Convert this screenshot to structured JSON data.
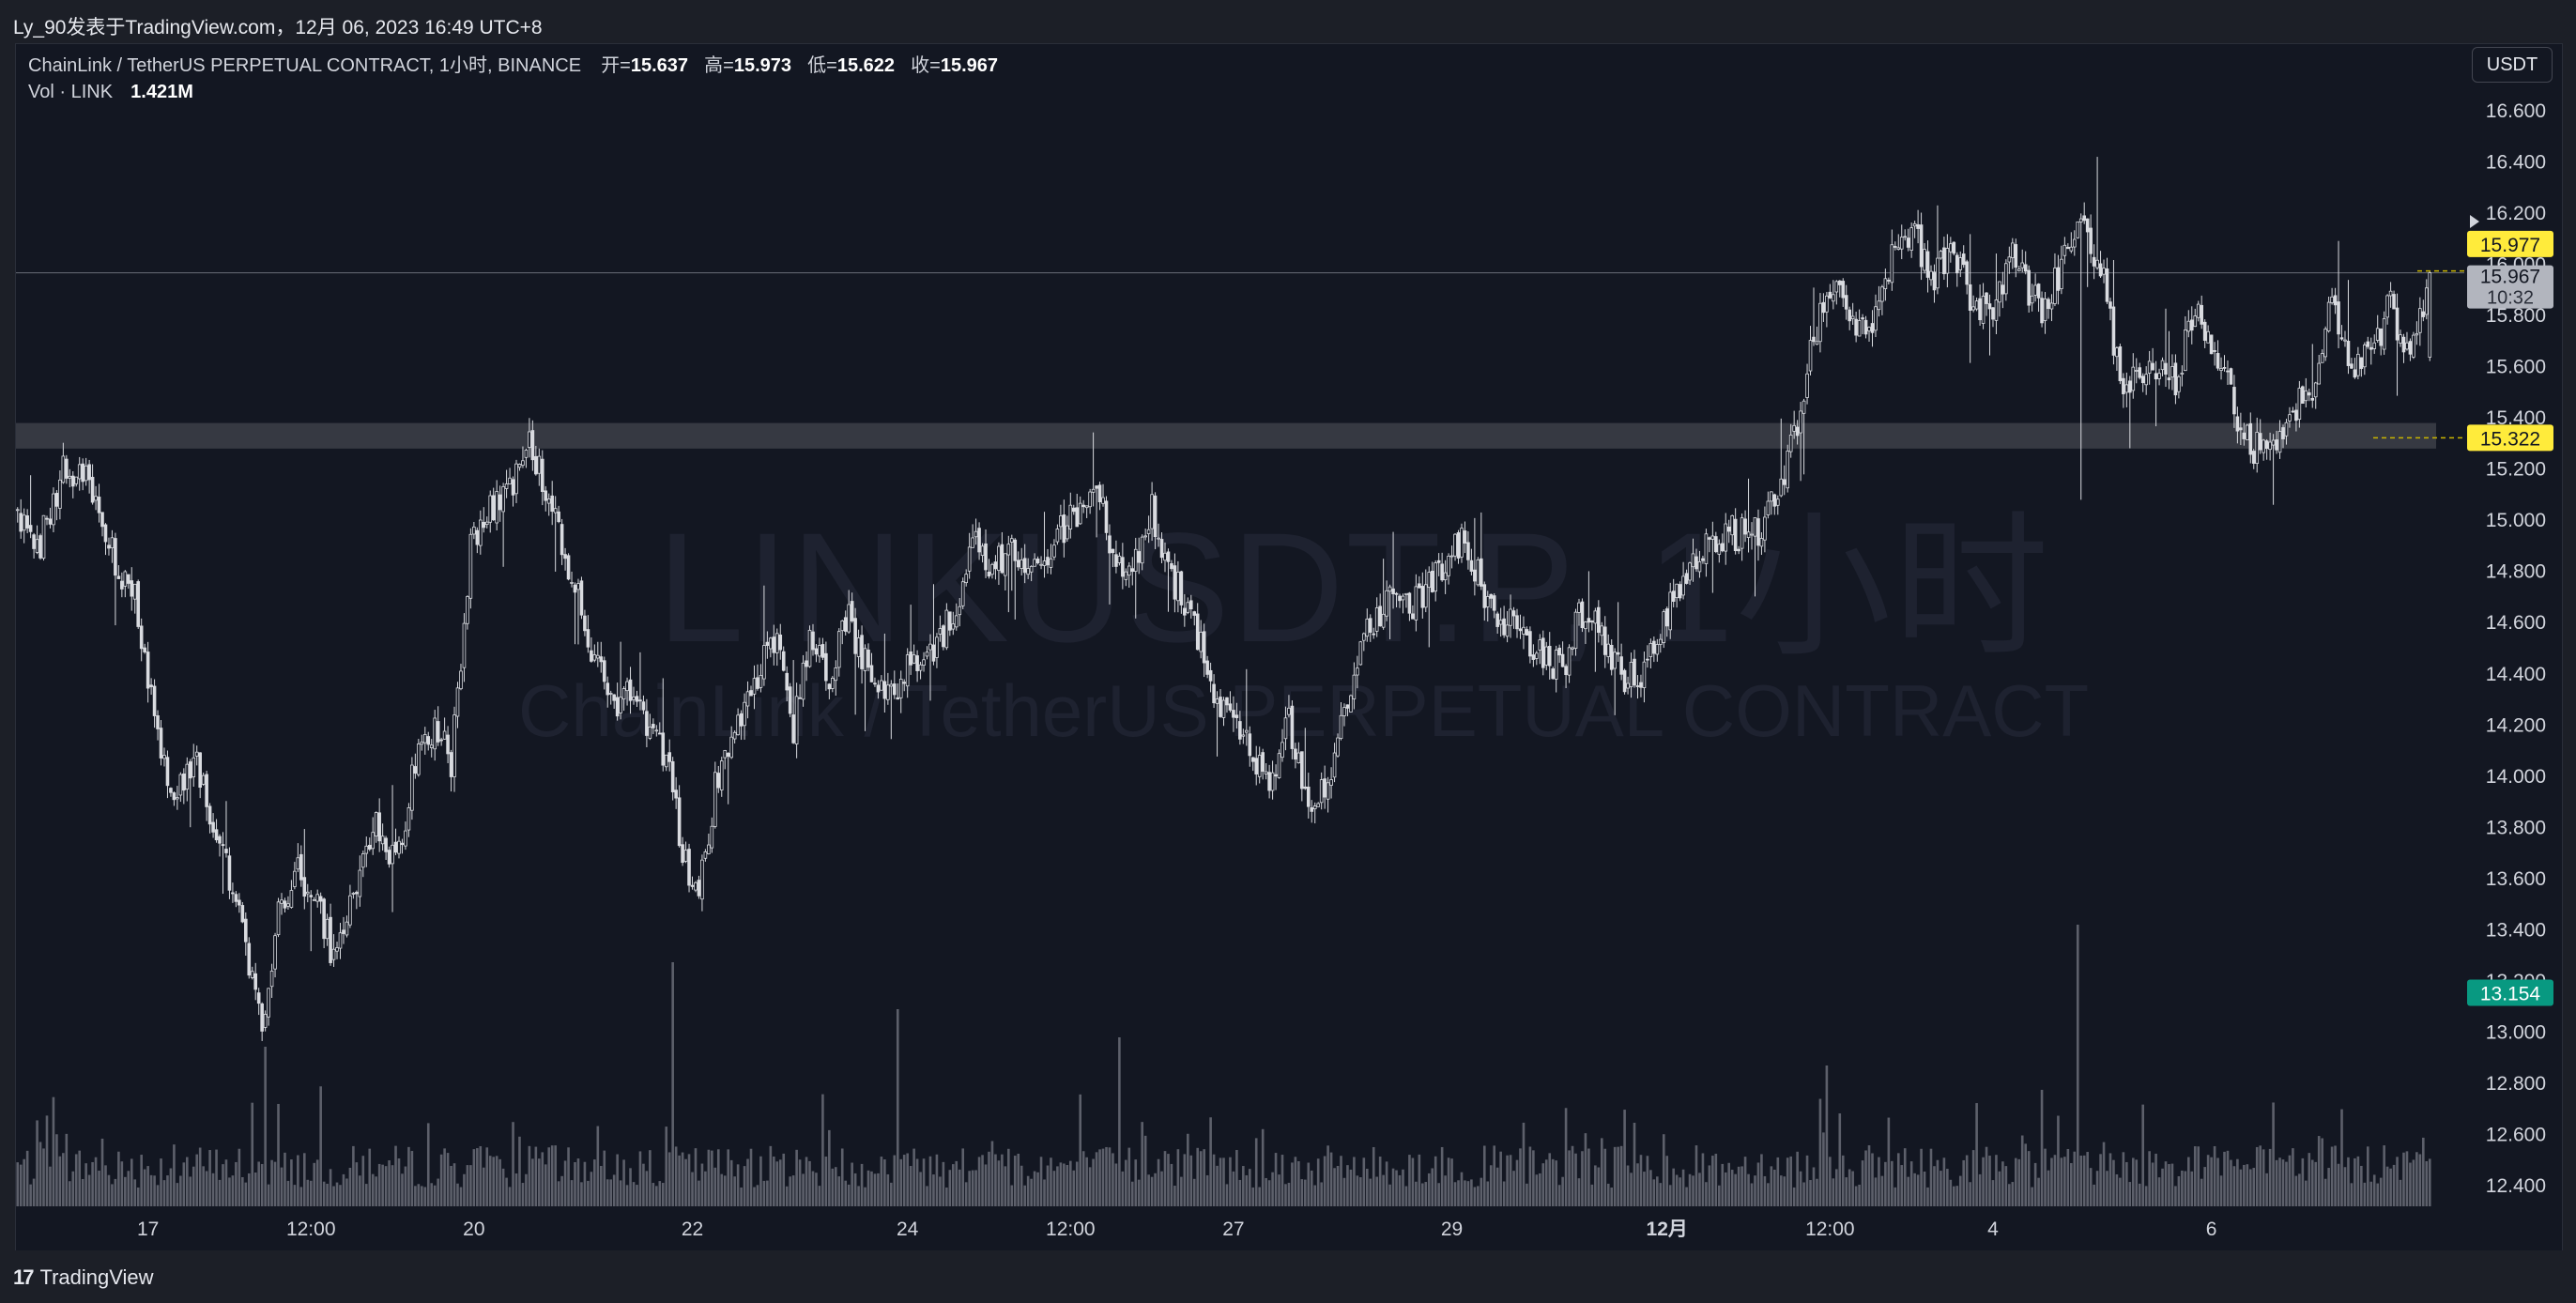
{
  "header": {
    "source_line": "Ly_90发表于TradingView.com，12月 06, 2023 16:49 UTC+8"
  },
  "legend": {
    "symbol": "ChainLink / TetherUS PERPETUAL CONTRACT, 1小时, BINANCE",
    "open_label": "开=",
    "open_value": "15.637",
    "high_label": "高=",
    "high_value": "15.973",
    "low_label": "低=",
    "low_value": "15.622",
    "close_label": "收=",
    "close_value": "15.967",
    "volume_label": "Vol · LINK",
    "volume_value": "1.421M"
  },
  "currency_button": "USDT",
  "watermark": {
    "ticker": "LINKUSDT.P, 1小时",
    "name": "ChainLink / TetherUS PERPETUAL CONTRACT"
  },
  "footer": {
    "brand": "TradingView",
    "brand_mark": "17"
  },
  "colors": {
    "background": "#131722",
    "candle": "#d9dbe0",
    "volume": "#5d606b",
    "zone": "#3d4048",
    "label_yellow": "#ffeb3b",
    "label_green": "#089981",
    "label_gray": "#b2b5be"
  },
  "chart_data": {
    "type": "candlestick",
    "interval": "1小时",
    "y_axis": {
      "range": [
        12.3,
        16.7
      ],
      "ticks": [
        "16.600",
        "16.400",
        "16.200",
        "16.000",
        "15.800",
        "15.600",
        "15.400",
        "15.200",
        "15.000",
        "14.800",
        "14.600",
        "14.400",
        "14.200",
        "14.000",
        "13.800",
        "13.600",
        "13.400",
        "13.200",
        "13.000",
        "12.800",
        "12.600",
        "12.400"
      ]
    },
    "x_axis": {
      "ticks": [
        "17",
        "12:00",
        "20",
        "22",
        "24",
        "12:00",
        "27",
        "29",
        "12月",
        "12:00",
        "4",
        "6"
      ],
      "tick_index": [
        40,
        90,
        140,
        207,
        273,
        323,
        373,
        440,
        506,
        556,
        606,
        673
      ],
      "bold_tick": "12月"
    },
    "close_path": [
      [
        0,
        15.05
      ],
      [
        6,
        14.88
      ],
      [
        14,
        15.2
      ],
      [
        22,
        15.15
      ],
      [
        30,
        14.85
      ],
      [
        36,
        14.7
      ],
      [
        42,
        14.2
      ],
      [
        48,
        13.95
      ],
      [
        55,
        14.05
      ],
      [
        62,
        13.75
      ],
      [
        70,
        13.35
      ],
      [
        75,
        13.02
      ],
      [
        80,
        13.45
      ],
      [
        86,
        13.65
      ],
      [
        92,
        13.48
      ],
      [
        97,
        13.3
      ],
      [
        104,
        13.55
      ],
      [
        110,
        13.8
      ],
      [
        116,
        13.65
      ],
      [
        122,
        14.05
      ],
      [
        128,
        14.2
      ],
      [
        133,
        14.05
      ],
      [
        139,
        14.9
      ],
      [
        146,
        15.05
      ],
      [
        152,
        15.15
      ],
      [
        157,
        15.35
      ],
      [
        163,
        15.05
      ],
      [
        170,
        14.8
      ],
      [
        176,
        14.5
      ],
      [
        182,
        14.3
      ],
      [
        188,
        14.3
      ],
      [
        194,
        14.15
      ],
      [
        200,
        14.05
      ],
      [
        204,
        13.68
      ],
      [
        209,
        13.55
      ],
      [
        214,
        13.95
      ],
      [
        220,
        14.2
      ],
      [
        226,
        14.38
      ],
      [
        232,
        14.55
      ],
      [
        238,
        14.2
      ],
      [
        243,
        14.55
      ],
      [
        249,
        14.38
      ],
      [
        255,
        14.62
      ],
      [
        261,
        14.4
      ],
      [
        268,
        14.3
      ],
      [
        275,
        14.45
      ],
      [
        281,
        14.5
      ],
      [
        287,
        14.65
      ],
      [
        294,
        14.9
      ],
      [
        300,
        14.82
      ],
      [
        306,
        14.9
      ],
      [
        312,
        14.8
      ],
      [
        318,
        14.92
      ],
      [
        324,
        15.02
      ],
      [
        330,
        15.15
      ],
      [
        336,
        14.9
      ],
      [
        342,
        14.78
      ],
      [
        348,
        15.05
      ],
      [
        354,
        14.78
      ],
      [
        360,
        14.65
      ],
      [
        366,
        14.38
      ],
      [
        372,
        14.2
      ],
      [
        378,
        14.1
      ],
      [
        384,
        14.0
      ],
      [
        390,
        14.2
      ],
      [
        396,
        13.9
      ],
      [
        402,
        14.0
      ],
      [
        408,
        14.3
      ],
      [
        414,
        14.55
      ],
      [
        420,
        14.7
      ],
      [
        426,
        14.65
      ],
      [
        432,
        14.72
      ],
      [
        438,
        14.85
      ],
      [
        444,
        14.95
      ],
      [
        450,
        14.7
      ],
      [
        456,
        14.6
      ],
      [
        462,
        14.55
      ],
      [
        468,
        14.45
      ],
      [
        474,
        14.42
      ],
      [
        480,
        14.65
      ],
      [
        486,
        14.55
      ],
      [
        492,
        14.4
      ],
      [
        498,
        14.38
      ],
      [
        504,
        14.55
      ],
      [
        510,
        14.75
      ],
      [
        516,
        14.9
      ],
      [
        522,
        14.95
      ],
      [
        528,
        14.95
      ],
      [
        534,
        14.95
      ],
      [
        540,
        15.1
      ],
      [
        546,
        15.4
      ],
      [
        552,
        15.75
      ],
      [
        558,
        15.95
      ],
      [
        564,
        15.75
      ],
      [
        570,
        15.8
      ],
      [
        576,
        16.1
      ],
      [
        582,
        16.1
      ],
      [
        588,
        15.95
      ],
      [
        594,
        16.05
      ],
      [
        600,
        15.85
      ],
      [
        606,
        15.85
      ],
      [
        612,
        16.05
      ],
      [
        617,
        15.9
      ],
      [
        622,
        15.8
      ],
      [
        628,
        16.05
      ],
      [
        634,
        16.15
      ],
      [
        640,
        15.95
      ],
      [
        645,
        15.55
      ],
      [
        650,
        15.55
      ],
      [
        656,
        15.62
      ],
      [
        662,
        15.55
      ],
      [
        668,
        15.8
      ],
      [
        674,
        15.7
      ],
      [
        680,
        15.42
      ],
      [
        686,
        15.28
      ],
      [
        692,
        15.32
      ],
      [
        698,
        15.45
      ],
      [
        704,
        15.5
      ],
      [
        710,
        15.85
      ],
      [
        716,
        15.55
      ],
      [
        722,
        15.65
      ],
      [
        728,
        15.85
      ],
      [
        734,
        15.6
      ],
      [
        740,
        15.97
      ]
    ],
    "bars": 741,
    "last_bar": {
      "open": 15.637,
      "high": 15.973,
      "low": 15.622,
      "close": 15.967
    },
    "volume": {
      "last": "1.421M"
    },
    "support_zone": [
      15.28,
      15.38
    ],
    "horizontal_line": 15.967,
    "price_labels": [
      {
        "value": "15.977",
        "style": "yellow"
      },
      {
        "value": "15.967",
        "style": "gray",
        "countdown": "10:32"
      },
      {
        "value": "15.322",
        "style": "yellow"
      },
      {
        "value": "13.154",
        "style": "green"
      }
    ]
  }
}
